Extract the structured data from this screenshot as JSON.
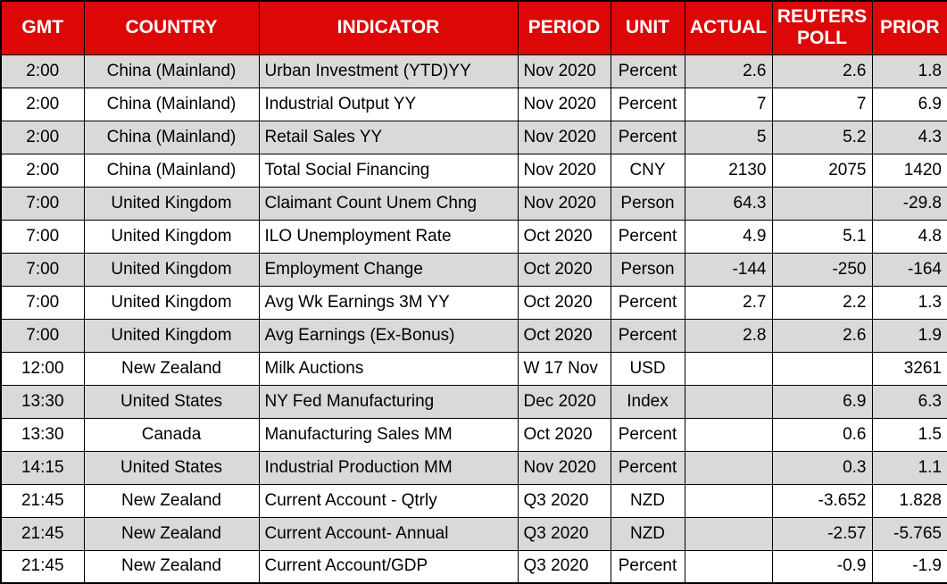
{
  "chart_data": {
    "type": "table",
    "columns": [
      "GMT",
      "COUNTRY",
      "INDICATOR",
      "PERIOD",
      "UNIT",
      "ACTUAL",
      "REUTERS POLL",
      "PRIOR"
    ],
    "column_keys": [
      "gmt",
      "country",
      "indicator",
      "period",
      "unit",
      "actual",
      "poll",
      "prior"
    ],
    "rows": [
      [
        "2:00",
        "China (Mainland)",
        "Urban Investment (YTD)YY",
        "Nov 2020",
        "Percent",
        "2.6",
        "2.6",
        "1.8"
      ],
      [
        "2:00",
        "China (Mainland)",
        "Industrial Output YY",
        "Nov 2020",
        "Percent",
        "7",
        "7",
        "6.9"
      ],
      [
        "2:00",
        "China (Mainland)",
        "Retail Sales YY",
        "Nov 2020",
        "Percent",
        "5",
        "5.2",
        "4.3"
      ],
      [
        "2:00",
        "China (Mainland)",
        "Total Social Financing",
        "Nov 2020",
        "CNY",
        "2130",
        "2075",
        "1420"
      ],
      [
        "7:00",
        "United Kingdom",
        "Claimant Count Unem Chng",
        "Nov 2020",
        "Person",
        "64.3",
        "",
        "-29.8"
      ],
      [
        "7:00",
        "United Kingdom",
        "ILO Unemployment Rate",
        "Oct 2020",
        "Percent",
        "4.9",
        "5.1",
        "4.8"
      ],
      [
        "7:00",
        "United Kingdom",
        "Employment Change",
        "Oct 2020",
        "Person",
        "-144",
        "-250",
        "-164"
      ],
      [
        "7:00",
        "United Kingdom",
        "Avg Wk Earnings 3M YY",
        "Oct 2020",
        "Percent",
        "2.7",
        "2.2",
        "1.3"
      ],
      [
        "7:00",
        "United Kingdom",
        "Avg Earnings (Ex-Bonus)",
        "Oct 2020",
        "Percent",
        "2.8",
        "2.6",
        "1.9"
      ],
      [
        "12:00",
        "New Zealand",
        "Milk Auctions",
        "W 17 Nov",
        "USD",
        "",
        "",
        "3261"
      ],
      [
        "13:30",
        "United States",
        "NY Fed Manufacturing",
        "Dec 2020",
        "Index",
        "",
        "6.9",
        "6.3"
      ],
      [
        "13:30",
        "Canada",
        "Manufacturing Sales MM",
        "Oct 2020",
        "Percent",
        "",
        "0.6",
        "1.5"
      ],
      [
        "14:15",
        "United States",
        "Industrial Production MM",
        "Nov 2020",
        "Percent",
        "",
        "0.3",
        "1.1"
      ],
      [
        "21:45",
        "New Zealand",
        "Current Account - Qtrly",
        "Q3 2020",
        "NZD",
        "",
        "-3.652",
        "1.828"
      ],
      [
        "21:45",
        "New Zealand",
        "Current Account- Annual",
        "Q3 2020",
        "NZD",
        "",
        "-2.57",
        "-5.765"
      ],
      [
        "21:45",
        "New Zealand",
        "Current Account/GDP",
        "Q3 2020",
        "Percent",
        "",
        "-0.9",
        "-1.9"
      ]
    ]
  },
  "colors": {
    "header_bg": "#dd0707",
    "header_text": "#ffffff",
    "row_bg": "#ffffff",
    "row_alt_bg": "#d9d9d9",
    "border": "#000000",
    "text": "#000000"
  }
}
